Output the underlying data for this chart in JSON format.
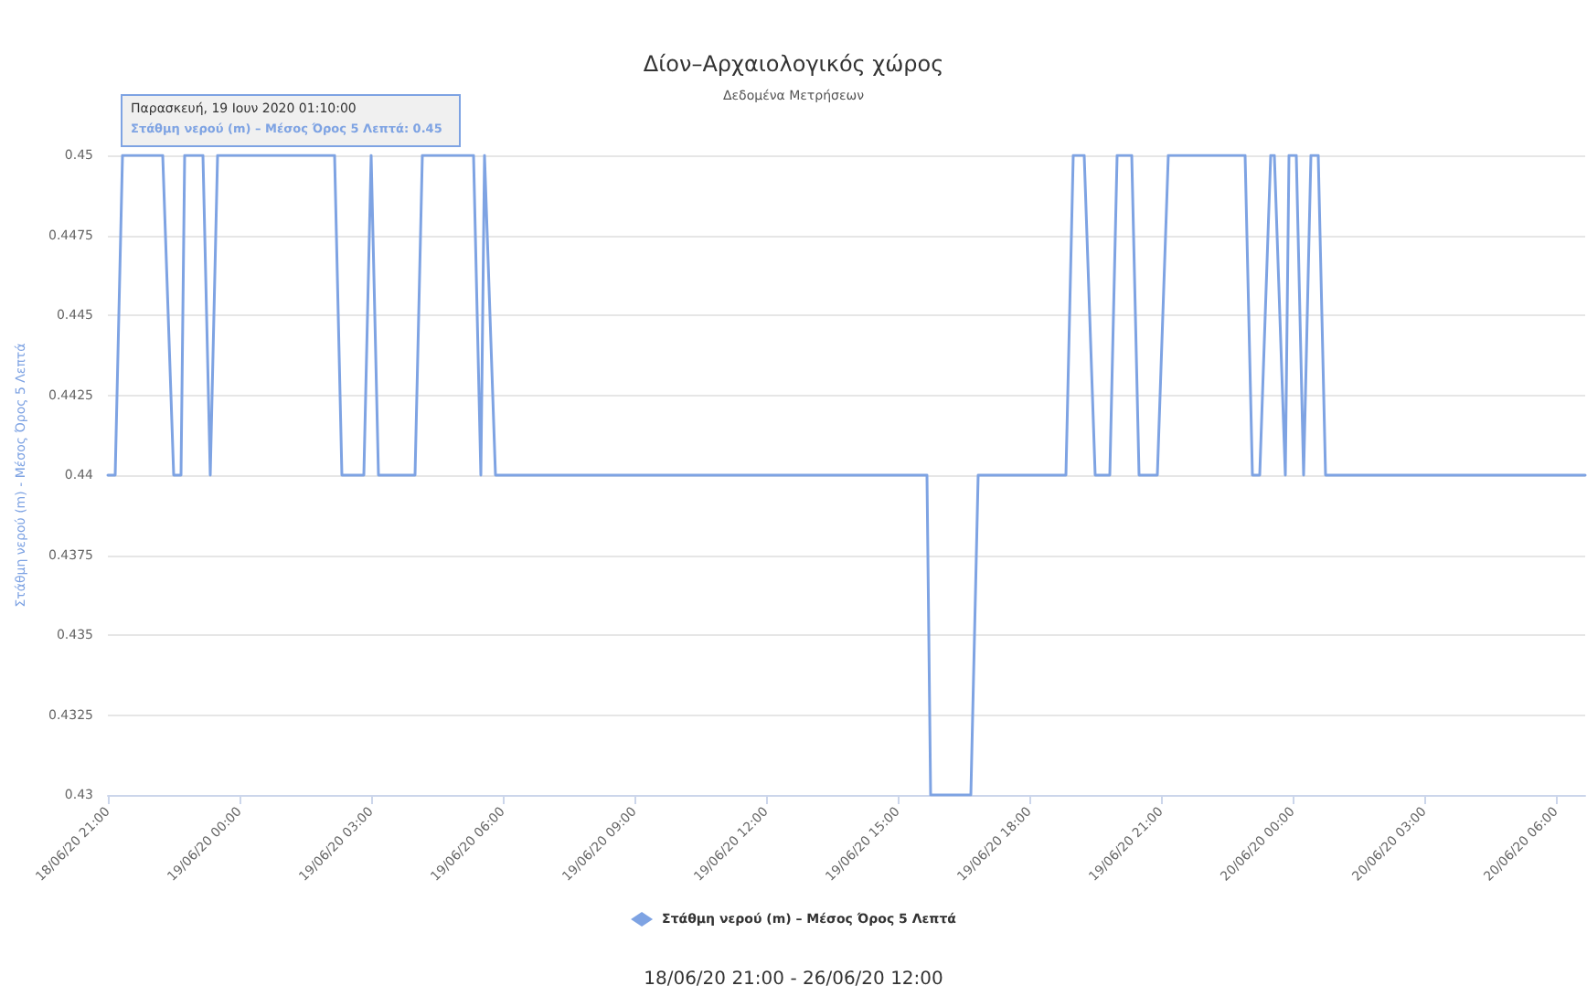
{
  "chart_data": {
    "type": "line",
    "title": "Δίον–Αρχαιολογικός χώρος",
    "subtitle": "Δεδομένα Μετρήσεων",
    "ylabel": "Στάθμη νερού (m) - Μέσος Όρος 5 Λεπτά",
    "x": [
      "2020-06-18T21:00",
      "2020-06-18T21:10",
      "2020-06-18T21:20",
      "2020-06-18T22:15",
      "2020-06-18T22:30",
      "2020-06-18T22:40",
      "2020-06-18T22:45",
      "2020-06-18T23:10",
      "2020-06-18T23:20",
      "2020-06-18T23:30",
      "2020-06-19T02:10",
      "2020-06-19T02:20",
      "2020-06-19T02:50",
      "2020-06-19T03:00",
      "2020-06-19T03:10",
      "2020-06-19T04:00",
      "2020-06-19T04:10",
      "2020-06-19T05:20",
      "2020-06-19T05:30",
      "2020-06-19T05:35",
      "2020-06-19T05:50",
      "2020-06-19T15:40",
      "2020-06-19T15:45",
      "2020-06-19T16:40",
      "2020-06-19T16:50",
      "2020-06-19T18:50",
      "2020-06-19T19:00",
      "2020-06-19T19:15",
      "2020-06-19T19:30",
      "2020-06-19T19:50",
      "2020-06-19T20:00",
      "2020-06-19T20:20",
      "2020-06-19T20:30",
      "2020-06-19T20:55",
      "2020-06-19T21:10",
      "2020-06-19T22:55",
      "2020-06-19T23:05",
      "2020-06-19T23:15",
      "2020-06-19T23:30",
      "2020-06-19T23:35",
      "2020-06-19T23:50",
      "2020-06-19T23:55",
      "2020-06-20T00:05",
      "2020-06-20T00:15",
      "2020-06-20T00:25",
      "2020-06-20T00:35",
      "2020-06-20T00:45",
      "2020-06-20T06:40"
    ],
    "series": [
      {
        "name": "Στάθμη νερού (m) – Μέσος Όρος 5 Λεπτά",
        "color": "#7ea3e3",
        "values": [
          0.44,
          0.44,
          0.45,
          0.45,
          0.44,
          0.44,
          0.45,
          0.45,
          0.44,
          0.45,
          0.45,
          0.44,
          0.44,
          0.45,
          0.44,
          0.44,
          0.45,
          0.45,
          0.44,
          0.45,
          0.44,
          0.44,
          0.43,
          0.43,
          0.44,
          0.44,
          0.45,
          0.45,
          0.44,
          0.44,
          0.45,
          0.45,
          0.44,
          0.44,
          0.45,
          0.45,
          0.44,
          0.44,
          0.45,
          0.45,
          0.44,
          0.45,
          0.45,
          0.44,
          0.45,
          0.45,
          0.44,
          0.44
        ]
      }
    ],
    "xlim": [
      "2020-06-18T21:00",
      "2020-06-20T06:40"
    ],
    "xticks": [
      {
        "value": "2020-06-18T21:00",
        "label": "18/06/20 21:00"
      },
      {
        "value": "2020-06-19T00:00",
        "label": "19/06/20 00:00"
      },
      {
        "value": "2020-06-19T03:00",
        "label": "19/06/20 03:00"
      },
      {
        "value": "2020-06-19T06:00",
        "label": "19/06/20 06:00"
      },
      {
        "value": "2020-06-19T09:00",
        "label": "19/06/20 09:00"
      },
      {
        "value": "2020-06-19T12:00",
        "label": "19/06/20 12:00"
      },
      {
        "value": "2020-06-19T15:00",
        "label": "19/06/20 15:00"
      },
      {
        "value": "2020-06-19T18:00",
        "label": "19/06/20 18:00"
      },
      {
        "value": "2020-06-19T21:00",
        "label": "19/06/20 21:00"
      },
      {
        "value": "2020-06-20T00:00",
        "label": "20/06/20 00:00"
      },
      {
        "value": "2020-06-20T03:00",
        "label": "20/06/20 03:00"
      },
      {
        "value": "2020-06-20T06:00",
        "label": "20/06/20 06:00"
      }
    ],
    "ylim": [
      0.43,
      0.45
    ],
    "yticks": [
      0.43,
      0.4325,
      0.435,
      0.4375,
      0.44,
      0.4425,
      0.445,
      0.4475,
      0.45
    ],
    "grid": "y",
    "legend": "bottom",
    "line_style": "solid",
    "annotations": [
      {
        "text": "Παρασκευή, 19 Ιουν 2020 01:10:00\nΣτάθμη νερού (m) – Μέσος Όρος 5 Λεπτά: 0.45",
        "x": "2020-06-19T01:10",
        "y": 0.45
      },
      "18/06/20 21:00 - 26/06/20 12:00"
    ]
  }
}
